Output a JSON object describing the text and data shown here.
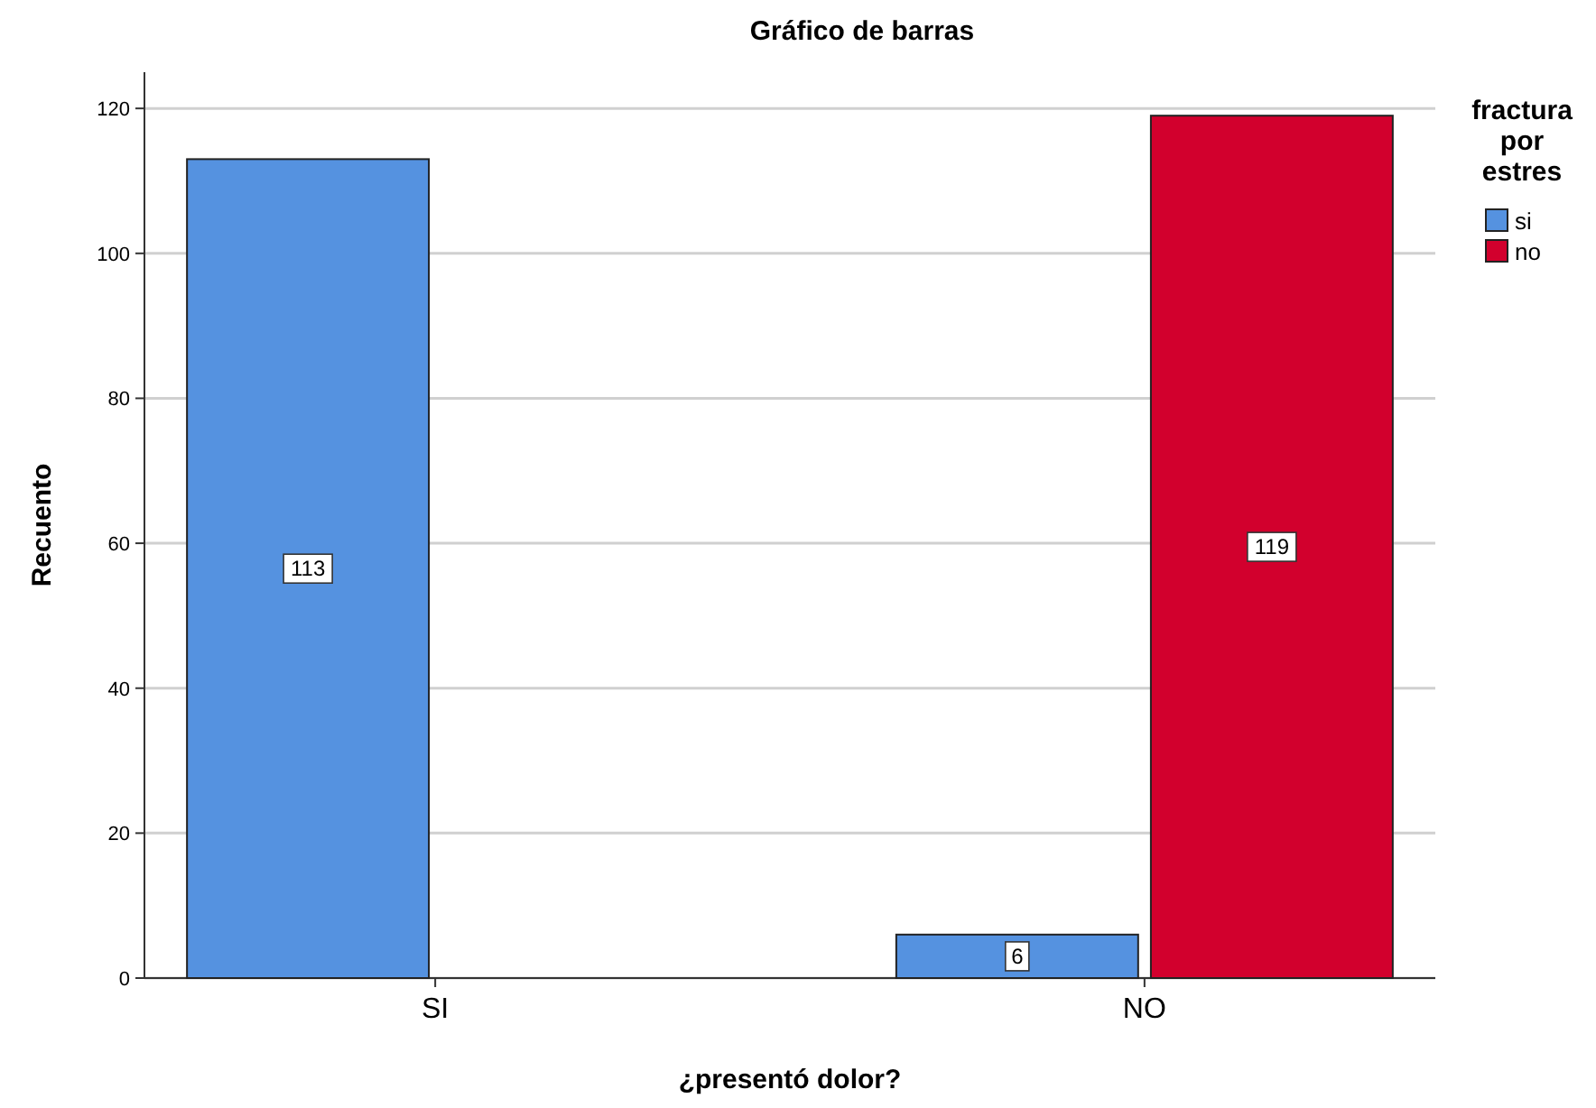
{
  "chart_data": {
    "type": "bar",
    "title": "Gráfico de barras",
    "xlabel": "¿presentó dolor?",
    "ylabel": "Recuento",
    "legend_title": "fractura por estres",
    "categories": [
      "SI",
      "NO"
    ],
    "series": [
      {
        "name": "si",
        "color": "#5592e0",
        "values": [
          113,
          6
        ]
      },
      {
        "name": "no",
        "color": "#d2002d",
        "values": [
          null,
          119
        ]
      }
    ],
    "ylim": [
      0,
      125
    ],
    "yticks": [
      0,
      20,
      40,
      60,
      80,
      100,
      120
    ],
    "grid": "y",
    "legend": "top right",
    "data_labels": true
  }
}
